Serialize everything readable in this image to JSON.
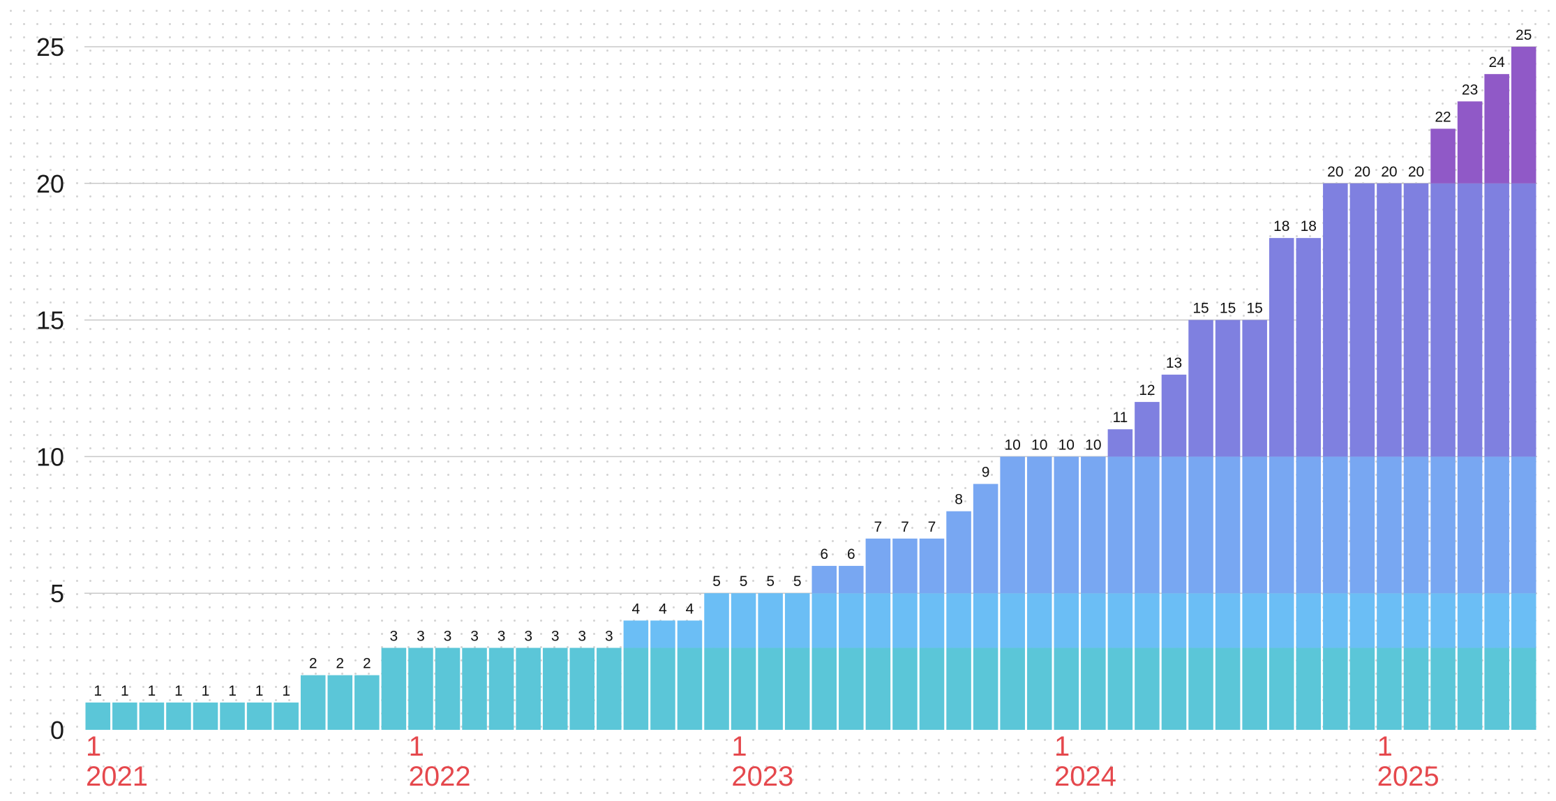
{
  "chart_data": {
    "type": "bar",
    "title": "",
    "xlabel": "",
    "ylabel": "",
    "ylim": [
      0,
      25
    ],
    "yticks": [
      0,
      5,
      10,
      15,
      20,
      25
    ],
    "grid": true,
    "x_axis_labels": [
      {
        "month": "1",
        "year": "2021",
        "index": 0
      },
      {
        "month": "1",
        "year": "2022",
        "index": 12
      },
      {
        "month": "1",
        "year": "2023",
        "index": 24
      },
      {
        "month": "1",
        "year": "2024",
        "index": 36
      },
      {
        "month": "1",
        "year": "2025",
        "index": 48
      }
    ],
    "values": [
      1,
      1,
      1,
      1,
      1,
      1,
      1,
      1,
      2,
      2,
      2,
      3,
      3,
      3,
      3,
      3,
      3,
      3,
      3,
      3,
      4,
      4,
      4,
      5,
      5,
      5,
      5,
      6,
      6,
      7,
      7,
      7,
      8,
      9,
      10,
      10,
      10,
      10,
      11,
      12,
      13,
      15,
      15,
      15,
      18,
      18,
      20,
      20,
      20,
      20,
      22,
      23,
      24,
      25
    ],
    "band_breaks": [
      3,
      5,
      10,
      20
    ],
    "band_colors": [
      "#5bc6d8",
      "#6bbef5",
      "#78a7f2",
      "#7f80e0",
      "#9059c7"
    ],
    "label_color": "#111111",
    "axis_label_color": "#e5484d"
  }
}
